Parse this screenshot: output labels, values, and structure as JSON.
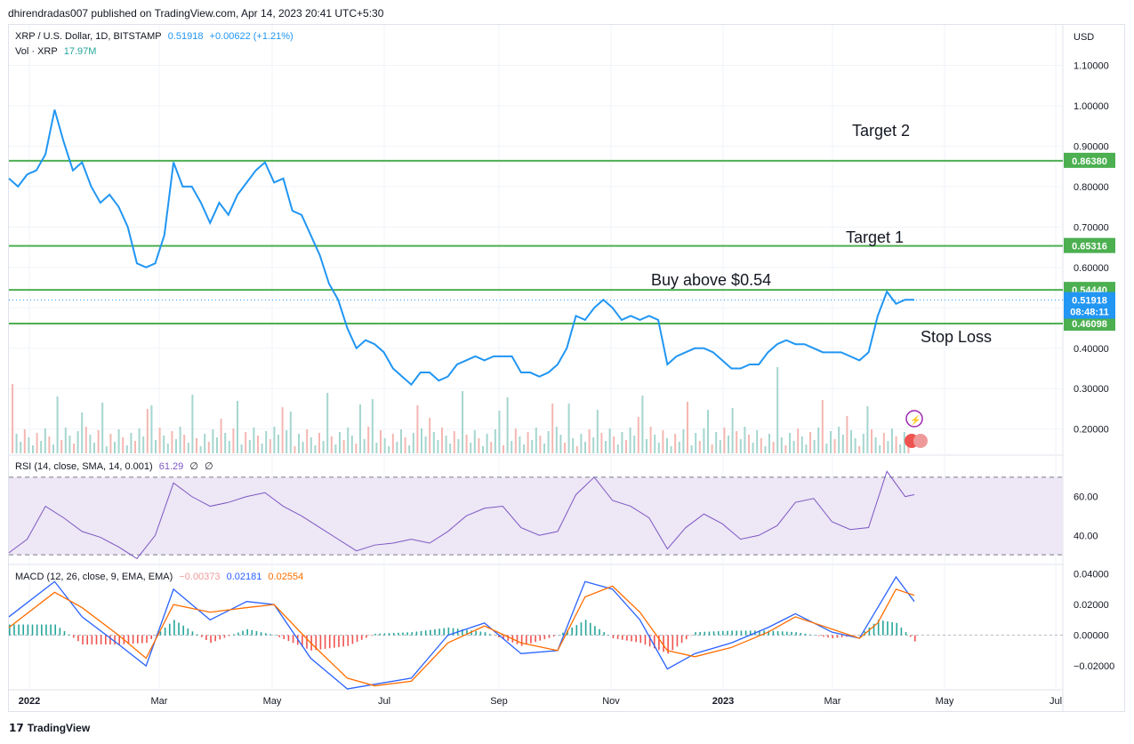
{
  "header": {
    "published": "dhirendradas007 published on TradingView.com, Apr 14, 2023 20:41 UTC+5:30"
  },
  "legend": {
    "symbol": "XRP / U.S. Dollar, 1D, BITSTAMP",
    "price": "0.51918",
    "change": "+0.00622 (+1.21%)",
    "vol_label": "Vol · XRP",
    "vol_value": "17.97M",
    "rsi_label": "RSI (14, close, SMA, 14, 0.001)",
    "rsi_value": "61.29",
    "rsi_na1": "∅",
    "rsi_na2": "∅",
    "macd_label": "MACD (12, 26, close, 9, EMA, EMA)",
    "macd_hist": "−0.00373",
    "macd_line": "0.02181",
    "macd_signal": "0.02554"
  },
  "colors": {
    "price_line": "#2196f3",
    "level_line": "#4caf50",
    "rsi_line": "#7e57c2",
    "rsi_band": "#ede7f6",
    "macd_line": "#2962ff",
    "signal_line": "#ff6d00",
    "hist_up": "#26a69a",
    "hist_down": "#ef5350",
    "current_price": "#2196f3"
  },
  "footer": {
    "brand": "TradingView"
  },
  "chart_data": {
    "type": "line",
    "currency": "USD",
    "y_ticks": [
      "1.10000",
      "1.00000",
      "0.90000",
      "0.80000",
      "0.70000",
      "0.60000",
      "0.50000",
      "0.40000",
      "0.30000",
      "0.20000"
    ],
    "x_ticks": [
      "2022",
      "Mar",
      "May",
      "Jul",
      "Sep",
      "Nov",
      "2023",
      "Mar",
      "May",
      "Jul"
    ],
    "ylim": [
      0.14,
      1.2
    ],
    "levels": [
      {
        "value": 0.8638,
        "label": "0.86380",
        "annotation": "Target 2"
      },
      {
        "value": 0.65316,
        "label": "0.65316",
        "annotation": "Target 1"
      },
      {
        "value": 0.5444,
        "label": "0.54440",
        "annotation": "Buy above $0.54"
      },
      {
        "value": 0.46098,
        "label": "0.46098",
        "annotation": "Stop Loss"
      }
    ],
    "current_price": {
      "value": 0.51918,
      "label": "0.51918",
      "countdown": "08:48:11"
    },
    "price_series": [
      [
        0,
        0.82
      ],
      [
        1,
        0.8
      ],
      [
        2,
        0.83
      ],
      [
        3,
        0.84
      ],
      [
        4,
        0.88
      ],
      [
        5,
        0.99
      ],
      [
        6,
        0.91
      ],
      [
        7,
        0.84
      ],
      [
        8,
        0.86
      ],
      [
        9,
        0.8
      ],
      [
        10,
        0.76
      ],
      [
        11,
        0.78
      ],
      [
        12,
        0.75
      ],
      [
        13,
        0.7
      ],
      [
        14,
        0.61
      ],
      [
        15,
        0.6
      ],
      [
        16,
        0.61
      ],
      [
        17,
        0.68
      ],
      [
        18,
        0.86
      ],
      [
        19,
        0.8
      ],
      [
        20,
        0.8
      ],
      [
        21,
        0.76
      ],
      [
        22,
        0.71
      ],
      [
        23,
        0.76
      ],
      [
        24,
        0.73
      ],
      [
        25,
        0.78
      ],
      [
        26,
        0.81
      ],
      [
        27,
        0.84
      ],
      [
        28,
        0.86
      ],
      [
        29,
        0.81
      ],
      [
        30,
        0.82
      ],
      [
        31,
        0.74
      ],
      [
        32,
        0.73
      ],
      [
        33,
        0.68
      ],
      [
        34,
        0.63
      ],
      [
        35,
        0.56
      ],
      [
        36,
        0.52
      ],
      [
        37,
        0.45
      ],
      [
        38,
        0.4
      ],
      [
        39,
        0.42
      ],
      [
        40,
        0.41
      ],
      [
        41,
        0.39
      ],
      [
        42,
        0.35
      ],
      [
        43,
        0.33
      ],
      [
        44,
        0.31
      ],
      [
        45,
        0.34
      ],
      [
        46,
        0.34
      ],
      [
        47,
        0.32
      ],
      [
        48,
        0.33
      ],
      [
        49,
        0.36
      ],
      [
        50,
        0.37
      ],
      [
        51,
        0.38
      ],
      [
        52,
        0.37
      ],
      [
        53,
        0.38
      ],
      [
        54,
        0.38
      ],
      [
        55,
        0.38
      ],
      [
        56,
        0.34
      ],
      [
        57,
        0.34
      ],
      [
        58,
        0.33
      ],
      [
        59,
        0.34
      ],
      [
        60,
        0.36
      ],
      [
        61,
        0.4
      ],
      [
        62,
        0.48
      ],
      [
        63,
        0.47
      ],
      [
        64,
        0.5
      ],
      [
        65,
        0.52
      ],
      [
        66,
        0.5
      ],
      [
        67,
        0.47
      ],
      [
        68,
        0.48
      ],
      [
        69,
        0.47
      ],
      [
        70,
        0.48
      ],
      [
        71,
        0.47
      ],
      [
        72,
        0.36
      ],
      [
        73,
        0.38
      ],
      [
        74,
        0.39
      ],
      [
        75,
        0.4
      ],
      [
        76,
        0.4
      ],
      [
        77,
        0.39
      ],
      [
        78,
        0.37
      ],
      [
        79,
        0.35
      ],
      [
        80,
        0.35
      ],
      [
        81,
        0.36
      ],
      [
        82,
        0.36
      ],
      [
        83,
        0.39
      ],
      [
        84,
        0.41
      ],
      [
        85,
        0.42
      ],
      [
        86,
        0.41
      ],
      [
        87,
        0.41
      ],
      [
        88,
        0.4
      ],
      [
        89,
        0.39
      ],
      [
        90,
        0.39
      ],
      [
        91,
        0.39
      ],
      [
        92,
        0.38
      ],
      [
        93,
        0.37
      ],
      [
        94,
        0.39
      ],
      [
        95,
        0.48
      ],
      [
        96,
        0.54
      ],
      [
        97,
        0.51
      ],
      [
        98,
        0.52
      ],
      [
        99,
        0.52
      ]
    ],
    "rsi": {
      "ylim": [
        25,
        80
      ],
      "y_ticks": [
        "60.00",
        "40.00"
      ],
      "upper": 70,
      "lower": 30,
      "series": [
        [
          0,
          31
        ],
        [
          2,
          38
        ],
        [
          4,
          55
        ],
        [
          6,
          49
        ],
        [
          8,
          42
        ],
        [
          10,
          39
        ],
        [
          12,
          34
        ],
        [
          14,
          28
        ],
        [
          16,
          40
        ],
        [
          18,
          67
        ],
        [
          20,
          60
        ],
        [
          22,
          55
        ],
        [
          24,
          57
        ],
        [
          26,
          60
        ],
        [
          28,
          62
        ],
        [
          30,
          55
        ],
        [
          32,
          50
        ],
        [
          34,
          44
        ],
        [
          36,
          38
        ],
        [
          38,
          32
        ],
        [
          40,
          35
        ],
        [
          42,
          36
        ],
        [
          44,
          38
        ],
        [
          46,
          36
        ],
        [
          48,
          42
        ],
        [
          50,
          50
        ],
        [
          52,
          54
        ],
        [
          54,
          55
        ],
        [
          56,
          44
        ],
        [
          58,
          40
        ],
        [
          60,
          42
        ],
        [
          62,
          61
        ],
        [
          64,
          70
        ],
        [
          66,
          58
        ],
        [
          68,
          55
        ],
        [
          70,
          49
        ],
        [
          72,
          33
        ],
        [
          74,
          44
        ],
        [
          76,
          51
        ],
        [
          78,
          46
        ],
        [
          80,
          38
        ],
        [
          82,
          40
        ],
        [
          84,
          45
        ],
        [
          86,
          57
        ],
        [
          88,
          59
        ],
        [
          90,
          47
        ],
        [
          92,
          43
        ],
        [
          94,
          44
        ],
        [
          96,
          73
        ],
        [
          98,
          60
        ],
        [
          99,
          61
        ]
      ]
    },
    "macd": {
      "ylim": [
        -0.035,
        0.045
      ],
      "y_ticks": [
        "0.04000",
        "0.02000",
        "0.00000",
        "−0.02000"
      ],
      "macd": [
        [
          0,
          0.012
        ],
        [
          5,
          0.035
        ],
        [
          8,
          0.012
        ],
        [
          12,
          -0.006
        ],
        [
          15,
          -0.02
        ],
        [
          18,
          0.03
        ],
        [
          22,
          0.01
        ],
        [
          26,
          0.022
        ],
        [
          29,
          0.02
        ],
        [
          33,
          -0.015
        ],
        [
          37,
          -0.035
        ],
        [
          40,
          -0.032
        ],
        [
          44,
          -0.028
        ],
        [
          48,
          0.0
        ],
        [
          52,
          0.008
        ],
        [
          56,
          -0.012
        ],
        [
          60,
          -0.01
        ],
        [
          63,
          0.035
        ],
        [
          66,
          0.03
        ],
        [
          69,
          0.01
        ],
        [
          72,
          -0.022
        ],
        [
          75,
          -0.012
        ],
        [
          79,
          -0.005
        ],
        [
          83,
          0.005
        ],
        [
          86,
          0.014
        ],
        [
          90,
          0.002
        ],
        [
          93,
          -0.002
        ],
        [
          95,
          0.018
        ],
        [
          97,
          0.038
        ],
        [
          99,
          0.022
        ]
      ],
      "signal": [
        [
          0,
          0.005
        ],
        [
          5,
          0.028
        ],
        [
          8,
          0.018
        ],
        [
          12,
          0.0
        ],
        [
          15,
          -0.015
        ],
        [
          18,
          0.02
        ],
        [
          22,
          0.015
        ],
        [
          26,
          0.018
        ],
        [
          29,
          0.02
        ],
        [
          33,
          -0.005
        ],
        [
          37,
          -0.028
        ],
        [
          40,
          -0.033
        ],
        [
          44,
          -0.03
        ],
        [
          48,
          -0.005
        ],
        [
          52,
          0.006
        ],
        [
          56,
          -0.005
        ],
        [
          60,
          -0.01
        ],
        [
          63,
          0.025
        ],
        [
          66,
          0.032
        ],
        [
          69,
          0.015
        ],
        [
          72,
          -0.01
        ],
        [
          75,
          -0.014
        ],
        [
          79,
          -0.008
        ],
        [
          83,
          0.002
        ],
        [
          86,
          0.012
        ],
        [
          90,
          0.004
        ],
        [
          93,
          -0.002
        ],
        [
          95,
          0.008
        ],
        [
          97,
          0.03
        ],
        [
          99,
          0.026
        ]
      ]
    }
  }
}
